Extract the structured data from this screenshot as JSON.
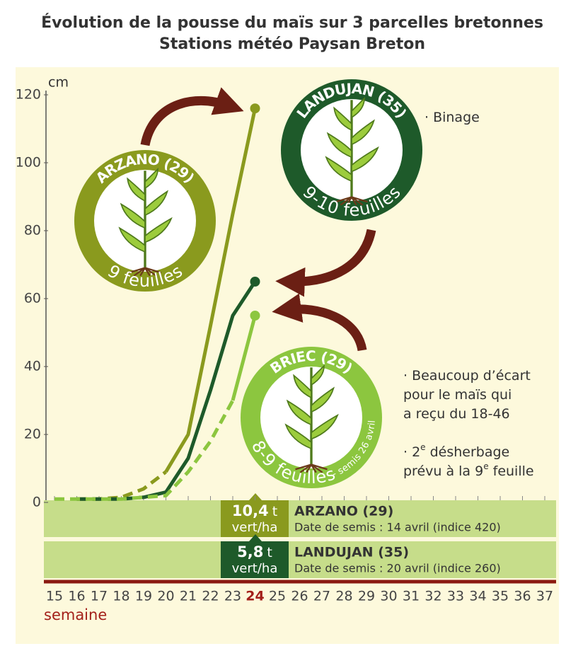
{
  "chart_data": {
    "type": "line",
    "title": "Évolution de la pousse du maïs sur 3 parcelles bretonnes",
    "subtitle": "Stations météo Paysan Breton",
    "y_label": "cm",
    "x_label": "semaine",
    "x": [
      15,
      16,
      17,
      18,
      19,
      20,
      21,
      22,
      23,
      24,
      25,
      26,
      27,
      28,
      29,
      30,
      31,
      32,
      33,
      34,
      35,
      36,
      37
    ],
    "highlight_x": 24,
    "xlim": [
      15,
      37
    ],
    "ylim": [
      0,
      120
    ],
    "yticks": [
      0,
      20,
      40,
      60,
      80,
      100,
      120
    ],
    "series": [
      {
        "name": "ARZANO (29)",
        "leaves": "9 feuilles",
        "color": "#8a9a1e",
        "dashed_to": 20,
        "values": [
          null,
          1,
          1,
          1.5,
          4,
          9,
          20,
          52,
          85,
          116,
          null,
          null,
          null,
          null,
          null,
          null,
          null,
          null,
          null,
          null,
          null,
          null,
          null
        ]
      },
      {
        "name": "LANDUJAN (35)",
        "leaves": "9-10 feuilles",
        "color": "#1e5a2a",
        "dashed_to": 19,
        "values": [
          null,
          1,
          1,
          1,
          1.5,
          3,
          13,
          33,
          55,
          65,
          null,
          null,
          null,
          null,
          null,
          null,
          null,
          null,
          null,
          null,
          null,
          null,
          null
        ]
      },
      {
        "name": "BRIEC (29)",
        "leaves": "8-9 feuilles",
        "note": "- semis 26 avril",
        "color": "#8cc63f",
        "dashed_to": 23,
        "values": [
          1,
          1,
          1,
          1,
          1.5,
          2,
          9,
          18,
          30,
          55,
          null,
          null,
          null,
          null,
          null,
          null,
          null,
          null,
          null,
          null,
          null,
          null,
          null
        ]
      }
    ],
    "annotations": [
      {
        "lines": [
          [
            "· Binage"
          ]
        ]
      },
      {
        "lines": [
          [
            "· Beaucoup d’écart"
          ],
          [
            "pour le maïs qui"
          ],
          [
            "a reçu du 18-46"
          ]
        ]
      },
      {
        "lines": [
          [
            "· 2",
            "e",
            " désherbage"
          ],
          [
            "prévu à la 9",
            "e",
            " feuille"
          ]
        ]
      }
    ],
    "yields": [
      {
        "amount": "10,4",
        "unit": "t",
        "per": "vert/ha",
        "name": "ARZANO (29)",
        "detail": "Date de semis : 14 avril (indice 420)",
        "color": "#8a9a1e"
      },
      {
        "amount": "5,8",
        "unit": "t",
        "per": "vert/ha",
        "name": "LANDUJAN (35)",
        "detail": "Date de semis : 20 avril (indice 260)",
        "color": "#1e5a2a"
      }
    ]
  }
}
